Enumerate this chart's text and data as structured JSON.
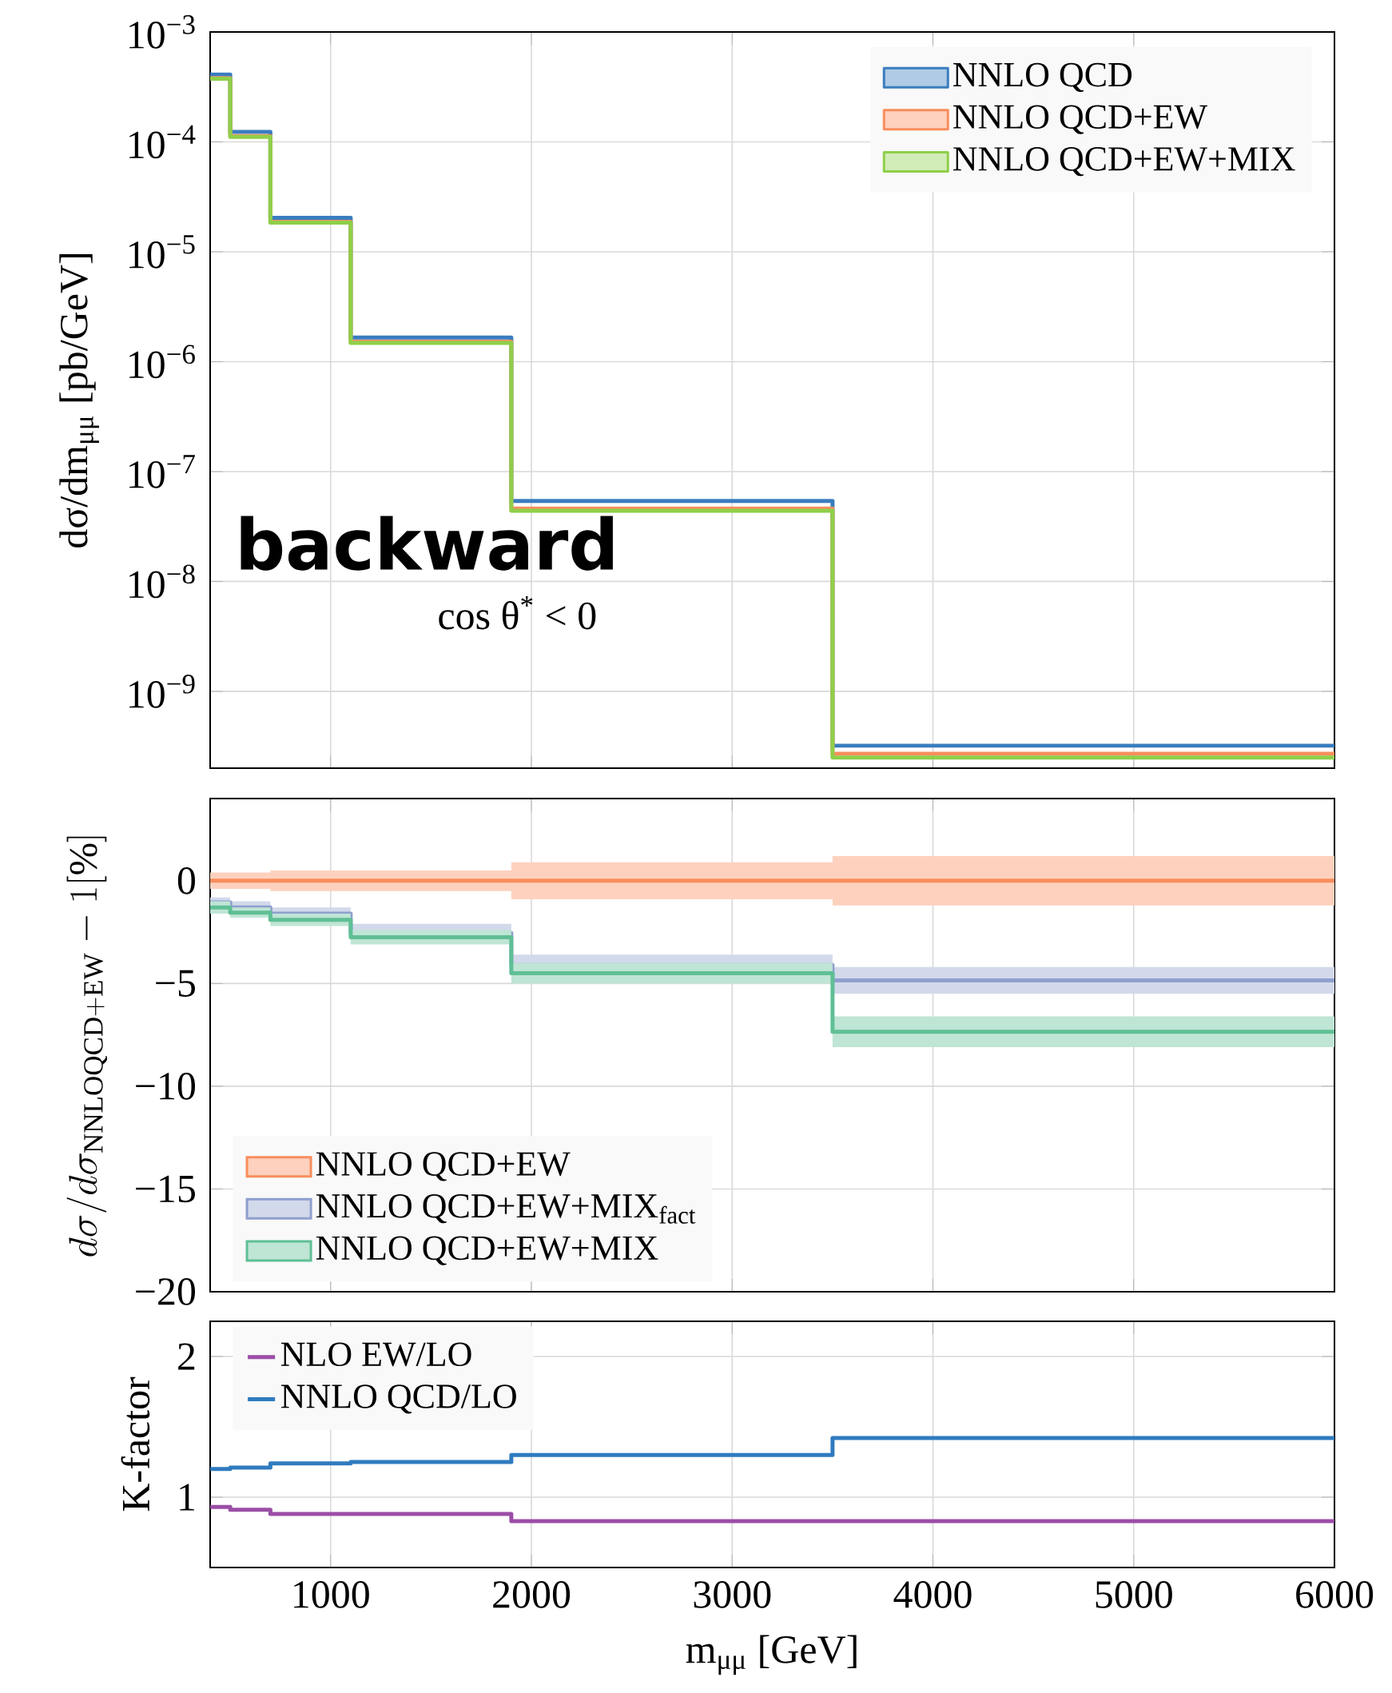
{
  "chart_data": [
    {
      "type": "histogram",
      "bins": [
        400,
        500,
        700,
        1100,
        1900,
        3500,
        6000
      ],
      "ylabel": "dσ/dm$_{μμ}$ [pb/GeV]",
      "log": "y",
      "grid": true,
      "legend": "top right",
      "tick_labels": "y",
      "xlim": [
        400,
        6000
      ],
      "xticks": [
        1000,
        2000,
        3000,
        4000,
        5000,
        6000
      ],
      "ylim": [
        2e-10,
        0.001
      ],
      "yticks": [
        {
          "value": 0.001,
          "label": "10$^{−3}$"
        },
        {
          "value": 0.0001,
          "label": "10$^{−4}$"
        },
        {
          "value": 1e-05,
          "label": "10$^{−5}$"
        },
        {
          "value": 1e-06,
          "label": "10$^{−6}$"
        },
        {
          "value": 1e-07,
          "label": "10$^{−7}$"
        },
        {
          "value": 1e-08,
          "label": "10$^{−8}$"
        },
        {
          "value": 1e-09,
          "label": "10$^{−9}$"
        }
      ],
      "annotations": [
        "backward",
        "cos θ$^{*}$ < 0"
      ],
      "series": [
        {
          "name": "NNLO QCD",
          "color": "#3a7dbf",
          "values": [
            0.00041,
            0.000123,
            2.04e-05,
            1.66e-06,
            5.4e-08,
            3.2e-10
          ]
        },
        {
          "name": "NNLO QCD+EW",
          "color": "#f98d5c",
          "values": [
            0.00038,
            0.000113,
            1.87e-05,
            1.52e-06,
            4.6e-08,
            2.7e-10
          ]
        },
        {
          "name": "NNLO QCD+EW+MIX",
          "color": "#8fcf4a",
          "values": [
            0.000375,
            0.000111,
            1.84e-05,
            1.48e-06,
            4.4e-08,
            2.5e-10
          ]
        }
      ]
    },
    {
      "type": "step",
      "x": [
        400,
        500,
        700,
        1100,
        1900,
        3500,
        6000
      ],
      "ylabel": "d\\sigma/d\\sigma_{\\mathrm{NNLOQCD+EW}}-1[\\%]",
      "grid": true,
      "legend": "bottom left",
      "tick_labels": "y",
      "xlim": [
        400,
        6000
      ],
      "xticks": [
        1000,
        2000,
        3000,
        4000,
        5000,
        6000
      ],
      "ylim": [
        -20,
        4
      ],
      "yticks": [
        {
          "value": 0,
          "label": "0"
        },
        {
          "value": -5,
          "label": "−5"
        },
        {
          "value": -10,
          "label": "−10"
        },
        {
          "value": -15,
          "label": "−15"
        },
        {
          "value": -20,
          "label": "−20"
        }
      ],
      "series": [
        {
          "name": "NNLO QCD+EW",
          "color": "#f98d5c",
          "values": [
            0,
            0,
            0,
            0,
            0,
            0,
            0
          ],
          "lower": [
            -0.4,
            -0.4,
            -0.5,
            -0.5,
            -0.9,
            -1.2,
            -1.2
          ],
          "upper": [
            0.4,
            0.4,
            0.5,
            0.5,
            0.9,
            1.2,
            1.2
          ]
        },
        {
          "name": "NNLO QCD+EW+MIX$_{fact}$",
          "color": "#8f9fce",
          "values": [
            -1.05,
            -1.3,
            -1.6,
            -2.55,
            -4.1,
            -4.85,
            -4.85
          ],
          "lower": [
            -1.3,
            -1.6,
            -1.9,
            -3.0,
            -4.6,
            -5.5,
            -5.5
          ],
          "upper": [
            -0.8,
            -1.0,
            -1.3,
            -2.1,
            -3.6,
            -4.2,
            -4.2
          ]
        },
        {
          "name": "NNLO QCD+EW+MIX",
          "color": "#5fbf95",
          "values": [
            -1.3,
            -1.55,
            -1.9,
            -2.75,
            -4.5,
            -7.35,
            -7.35
          ],
          "lower": [
            -1.6,
            -1.8,
            -2.2,
            -3.1,
            -5.0,
            -8.1,
            -8.1
          ],
          "upper": [
            -1.0,
            -1.3,
            -1.6,
            -2.4,
            -4.0,
            -6.6,
            -6.6
          ]
        }
      ]
    },
    {
      "type": "histogram",
      "bins": [
        400,
        500,
        700,
        1100,
        1900,
        3500,
        6000
      ],
      "xlabel": "m$_{μμ}$ [GeV]",
      "ylabel": "K-factor",
      "grid": true,
      "legend": "top left",
      "xlim": [
        400,
        6000
      ],
      "xticks": [
        1000,
        2000,
        3000,
        4000,
        5000,
        6000
      ],
      "ylim": [
        0.5,
        2.25
      ],
      "yticks": [
        1,
        2
      ],
      "series": [
        {
          "name": "NLO EW/LO",
          "color": "#9b4ea6",
          "values": [
            0.93,
            0.91,
            0.88,
            0.88,
            0.83,
            0.83
          ]
        },
        {
          "name": "NNLO QCD/LO",
          "color": "#2f7bbf",
          "values": [
            1.2,
            1.21,
            1.24,
            1.25,
            1.3,
            1.42
          ]
        }
      ]
    }
  ]
}
